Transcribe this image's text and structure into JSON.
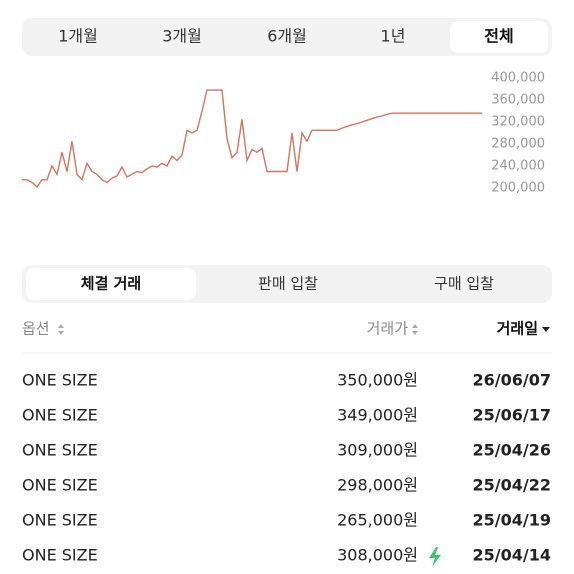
{
  "period_tabs": [
    "1개월",
    "3개월",
    "6개월",
    "1년",
    "전체"
  ],
  "chart_data": {
    "type": "line",
    "color": "#d4735e",
    "values": [
      215000,
      215000,
      210000,
      202000,
      215000,
      215000,
      240000,
      225000,
      265000,
      230000,
      285000,
      225000,
      215000,
      245000,
      230000,
      225000,
      215000,
      210000,
      218000,
      222000,
      238000,
      220000,
      225000,
      230000,
      228000,
      235000,
      240000,
      238000,
      245000,
      240000,
      258000,
      250000,
      260000,
      305000,
      300000,
      305000,
      340000,
      378000,
      378000,
      378000,
      378000,
      290000,
      255000,
      265000,
      325000,
      250000,
      270000,
      265000,
      272000,
      230000,
      230000,
      230000,
      230000,
      230000,
      300000,
      230000,
      300000,
      285000,
      305000,
      305000,
      305000,
      305000,
      305000,
      305000,
      309000,
      312000,
      315000,
      317000,
      320000,
      323000,
      326000,
      329000,
      331000,
      334000,
      336000,
      336000,
      336000,
      336000,
      336000,
      336000,
      336000,
      336000,
      336000,
      336000,
      336000,
      336000,
      336000,
      336000,
      336000,
      336000,
      336000,
      336000,
      336000
    ],
    "ylim": [
      180000,
      420000
    ],
    "yticks": [
      {
        "value": 200000,
        "label": "200,000"
      },
      {
        "value": 240000,
        "label": "240,000"
      },
      {
        "value": 280000,
        "label": "280,000"
      },
      {
        "value": 320000,
        "label": "320,000"
      },
      {
        "value": 360000,
        "label": "360,000"
      },
      {
        "value": 400000,
        "label": "400,000"
      }
    ]
  },
  "trade_tabs": [
    "체결 거래",
    "판매 입찰",
    "구매 입찰"
  ],
  "table": {
    "header": [
      "옵션",
      "거래가",
      "거래일"
    ],
    "rows": [
      [
        "ONE SIZE",
        "350,000원",
        "26/06/07"
      ],
      [
        "ONE SIZE",
        "349,000원",
        "25/06/17"
      ],
      [
        "ONE SIZE",
        "309,000원",
        "25/04/26"
      ],
      [
        "ONE SIZE",
        "298,000원",
        "25/04/22"
      ],
      [
        "ONE SIZE",
        "265,000원",
        "25/04/19"
      ],
      [
        "ONE SIZE",
        "308,000원",
        "25/04/14"
      ]
    ]
  }
}
